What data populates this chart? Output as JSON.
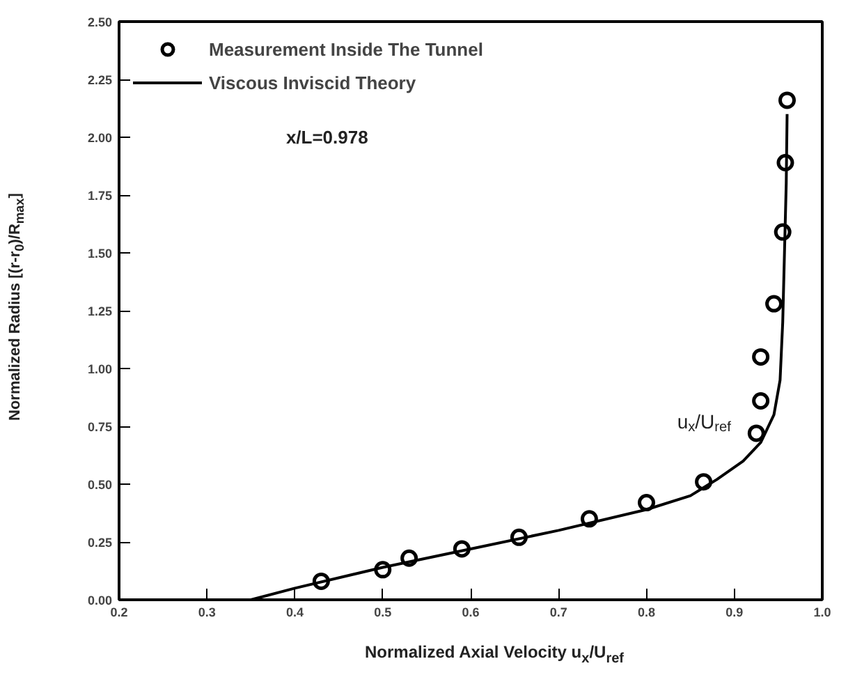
{
  "chart_data": {
    "type": "scatter",
    "xlabel": "Normalized Axial Velocity  u$_{x}$/U$_{ref}$",
    "ylabel": "Normalized Radius [(r-r$_{0}$)/R$_{max}$]",
    "annotations": [
      "x/L=0.978",
      "u$_{x}$/U$_{ref}$"
    ],
    "xlim": [
      0.2,
      1.0
    ],
    "xticks": [
      0.2,
      0.3,
      0.4,
      0.5,
      0.6,
      0.7,
      0.8,
      0.9,
      {
        "value": 1.0,
        "label": "1.0"
      }
    ],
    "ylim": [
      0,
      2.5
    ],
    "yticks": [
      {
        "value": 0,
        "label": "0.00"
      },
      {
        "value": 0.25,
        "label": "0.25"
      },
      {
        "value": 0.5,
        "label": "0.50"
      },
      {
        "value": 0.75,
        "label": "0.75"
      },
      {
        "value": 1.0,
        "label": "1.00"
      },
      {
        "value": 1.25,
        "label": "1.25"
      },
      {
        "value": 1.5,
        "label": "1.50"
      },
      {
        "value": 1.75,
        "label": "1.75"
      },
      {
        "value": 2.0,
        "label": "2.00"
      },
      {
        "value": 2.25,
        "label": "2.25"
      },
      {
        "value": 2.5,
        "label": "2.50"
      }
    ],
    "grid": false,
    "legend": "top left",
    "series": [
      {
        "name": "Measurement Inside The Tunnel",
        "type": "scatter",
        "marker": "circle",
        "color": "#000000",
        "x": [
          0.43,
          0.5,
          0.53,
          0.59,
          0.655,
          0.735,
          0.8,
          0.865,
          0.925,
          0.93,
          0.93,
          0.945,
          0.955,
          0.958,
          0.96
        ],
        "values": [
          0.08,
          0.13,
          0.18,
          0.22,
          0.27,
          0.35,
          0.42,
          0.51,
          0.72,
          0.86,
          1.05,
          1.28,
          1.59,
          1.89,
          2.16
        ]
      },
      {
        "name": "Viscous Inviscid Theory",
        "type": "line",
        "line_style": "solid",
        "color": "#000000",
        "x": [
          0.35,
          0.4,
          0.5,
          0.6,
          0.7,
          0.8,
          0.85,
          0.88,
          0.91,
          0.93,
          0.945,
          0.952,
          0.955,
          0.957,
          0.959,
          0.96
        ],
        "values": [
          0,
          0.05,
          0.14,
          0.22,
          0.3,
          0.39,
          0.45,
          0.52,
          0.6,
          0.68,
          0.8,
          0.95,
          1.2,
          1.5,
          1.8,
          2.1
        ]
      }
    ]
  }
}
